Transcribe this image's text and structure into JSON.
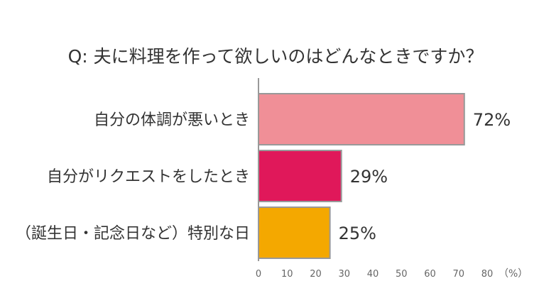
{
  "chart_data": {
    "type": "bar",
    "orientation": "horizontal",
    "title": "Q: 夫に料理を作って欲しいのはどんなときですか？",
    "categories": [
      "自分の体調が悪いとき",
      "自分がリクエストをしたとき",
      "（誕生日・記念日など）特別な日"
    ],
    "values": [
      72,
      29,
      25
    ],
    "value_labels": [
      "72%",
      "29%",
      "25%"
    ],
    "colors": [
      "#f08f97",
      "#e0185a",
      "#f4a800"
    ],
    "xlim": [
      0,
      80
    ],
    "xticks": [
      0,
      10,
      20,
      30,
      40,
      50,
      60,
      70,
      80
    ],
    "xlabel": "（%）",
    "grid": false,
    "legend": "none"
  }
}
